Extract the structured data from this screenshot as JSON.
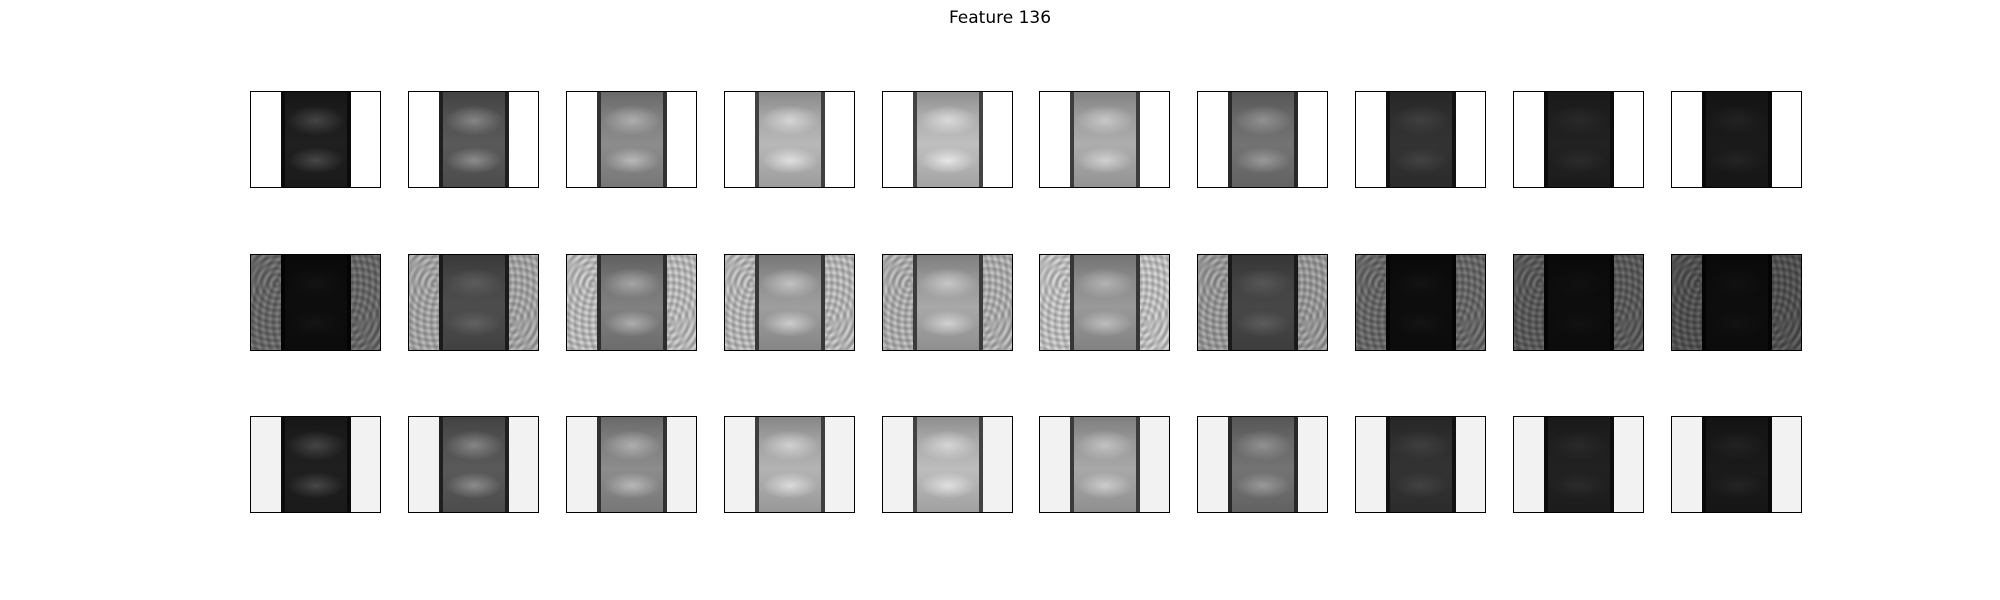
{
  "title": "Feature 136",
  "rows": [
    {
      "name": "row-1",
      "background": "#ffffff",
      "noise": 0,
      "panels": [
        {
          "brightness": 0.12,
          "blob": 0.28
        },
        {
          "brightness": 0.35,
          "blob": 0.55
        },
        {
          "brightness": 0.55,
          "blob": 0.72
        },
        {
          "brightness": 0.72,
          "blob": 0.88
        },
        {
          "brightness": 0.75,
          "blob": 0.9
        },
        {
          "brightness": 0.68,
          "blob": 0.82
        },
        {
          "brightness": 0.45,
          "blob": 0.6
        },
        {
          "brightness": 0.2,
          "blob": 0.26
        },
        {
          "brightness": 0.13,
          "blob": 0.17
        },
        {
          "brightness": 0.1,
          "blob": 0.14
        }
      ]
    },
    {
      "name": "row-2",
      "background": "#e0e0e0",
      "noise": 1,
      "panels": [
        {
          "brightness": 0.05,
          "blob": 0.08,
          "side": 0.72
        },
        {
          "brightness": 0.3,
          "blob": 0.38,
          "side": 0.88
        },
        {
          "brightness": 0.5,
          "blob": 0.68,
          "side": 0.93
        },
        {
          "brightness": 0.62,
          "blob": 0.8,
          "side": 0.92
        },
        {
          "brightness": 0.66,
          "blob": 0.82,
          "side": 0.9
        },
        {
          "brightness": 0.6,
          "blob": 0.74,
          "side": 0.94
        },
        {
          "brightness": 0.28,
          "blob": 0.36,
          "side": 0.85
        },
        {
          "brightness": 0.05,
          "blob": 0.08,
          "side": 0.72
        },
        {
          "brightness": 0.05,
          "blob": 0.07,
          "side": 0.68
        },
        {
          "brightness": 0.05,
          "blob": 0.07,
          "side": 0.65
        }
      ]
    },
    {
      "name": "row-3",
      "background": "#f2f2f2",
      "noise": 0,
      "panels": [
        {
          "brightness": 0.12,
          "blob": 0.28
        },
        {
          "brightness": 0.35,
          "blob": 0.55
        },
        {
          "brightness": 0.55,
          "blob": 0.72
        },
        {
          "brightness": 0.7,
          "blob": 0.86
        },
        {
          "brightness": 0.74,
          "blob": 0.88
        },
        {
          "brightness": 0.66,
          "blob": 0.8
        },
        {
          "brightness": 0.45,
          "blob": 0.6
        },
        {
          "brightness": 0.2,
          "blob": 0.26
        },
        {
          "brightness": 0.13,
          "blob": 0.17
        },
        {
          "brightness": 0.1,
          "blob": 0.14
        }
      ]
    }
  ]
}
